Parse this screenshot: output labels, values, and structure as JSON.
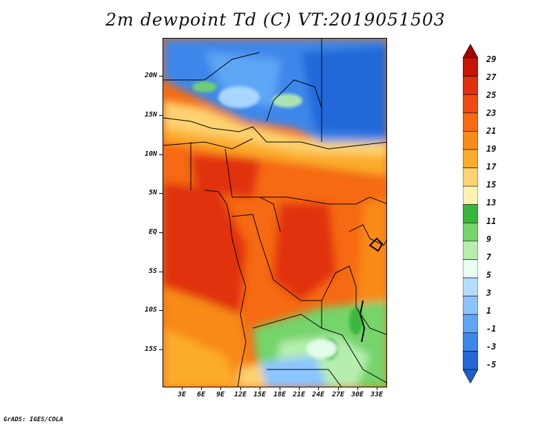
{
  "title": "2m dewpoint Td (C) VT:2019051503",
  "footer": "GrADS: IGES/COLA",
  "map": {
    "lat_labels": [
      "20N",
      "15N",
      "10N",
      "5N",
      "EQ",
      "5S",
      "10S",
      "15S"
    ],
    "lon_labels": [
      "3E",
      "6E",
      "9E",
      "12E",
      "15E",
      "18E",
      "21E",
      "24E",
      "27E",
      "30E",
      "33E"
    ]
  },
  "colorbar": {
    "labels": [
      "29",
      "27",
      "25",
      "23",
      "21",
      "19",
      "17",
      "15",
      "13",
      "11",
      "9",
      "7",
      "5",
      "3",
      "1",
      "-1",
      "-3",
      "-5"
    ],
    "colors": [
      "#a50000",
      "#c81405",
      "#e0300e",
      "#f04a10",
      "#f56a12",
      "#f88a18",
      "#fbac2c",
      "#fdd270",
      "#fdf2b0",
      "#36b63a",
      "#74d46a",
      "#b6eeae",
      "#e6fff0",
      "#b4dcff",
      "#8cc4ff",
      "#5ea6f5",
      "#3c87ea",
      "#2468d8",
      "#1e5ccc"
    ]
  }
}
